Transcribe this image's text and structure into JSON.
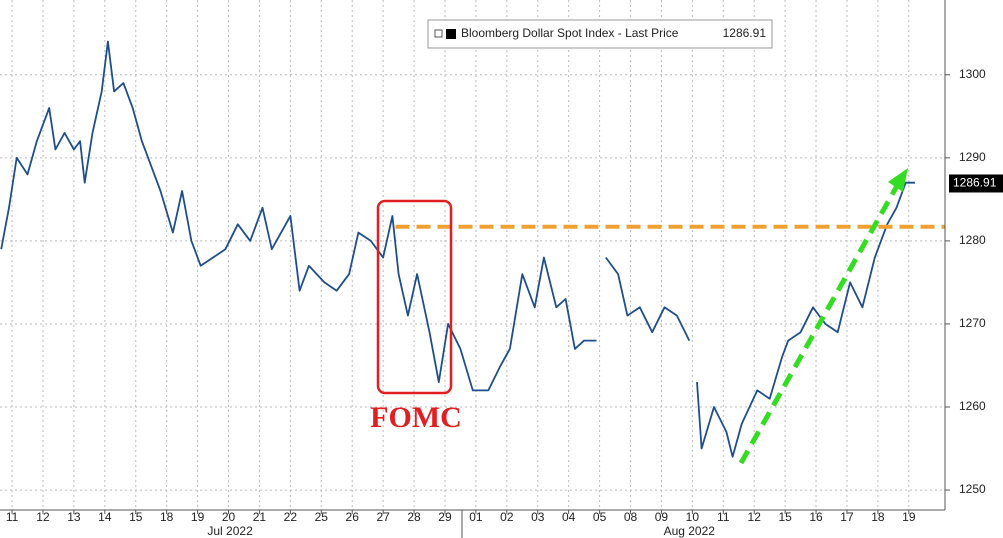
{
  "chart_data": {
    "type": "line",
    "legend_name": "Bloomberg Dollar Spot Index - Last Price",
    "last_price": 1286.91,
    "annotation": "FOMC",
    "hline": 1281.7,
    "xlim": [
      -0.39,
      30.17
    ],
    "ylim": [
      1247.6,
      1309
    ],
    "yticks": [
      1250,
      1260,
      1270,
      1280,
      1290,
      1300
    ],
    "xticks": [
      {
        "value": 0,
        "label": "11"
      },
      {
        "value": 1,
        "label": "12"
      },
      {
        "value": 2,
        "label": "13"
      },
      {
        "value": 3,
        "label": "14"
      },
      {
        "value": 4,
        "label": "15"
      },
      {
        "value": 5,
        "label": "18"
      },
      {
        "value": 6,
        "label": "19"
      },
      {
        "value": 7,
        "label": "20"
      },
      {
        "value": 8,
        "label": "21"
      },
      {
        "value": 9,
        "label": "22"
      },
      {
        "value": 10,
        "label": "25"
      },
      {
        "value": 11,
        "label": "26"
      },
      {
        "value": 12,
        "label": "27"
      },
      {
        "value": 13,
        "label": "28"
      },
      {
        "value": 14,
        "label": "29"
      },
      {
        "value": 15,
        "label": "01"
      },
      {
        "value": 16,
        "label": "02"
      },
      {
        "value": 17,
        "label": "03"
      },
      {
        "value": 18,
        "label": "04"
      },
      {
        "value": 19,
        "label": "05"
      },
      {
        "value": 20,
        "label": "08"
      },
      {
        "value": 21,
        "label": "09"
      },
      {
        "value": 22,
        "label": "10"
      },
      {
        "value": 23,
        "label": "11"
      },
      {
        "value": 24,
        "label": "12"
      },
      {
        "value": 25,
        "label": "15"
      },
      {
        "value": 26,
        "label": "16"
      },
      {
        "value": 27,
        "label": "17"
      },
      {
        "value": 28,
        "label": "18"
      },
      {
        "value": 29,
        "label": "19"
      }
    ],
    "month_labels": [
      {
        "value": 7.05,
        "label": "Jul 2022"
      },
      {
        "value": 21.9,
        "label": "Aug 2022"
      }
    ],
    "grid": true,
    "series": [
      {
        "name": "Bloomberg Dollar Spot Index",
        "color": "#1f4e8c",
        "x": [
          -0.35,
          -0.1,
          0.15,
          0.5,
          0.8,
          1.0,
          1.2,
          1.4,
          1.7,
          2.0,
          2.2,
          2.35,
          2.6,
          2.9,
          3.1,
          3.3,
          3.6,
          3.9,
          4.2,
          4.5,
          4.8,
          5.2,
          5.5,
          5.8,
          6.1,
          6.5,
          6.9,
          7.3,
          7.7,
          8.1,
          8.4,
          8.7,
          9.0,
          9.3,
          9.6,
          10.1,
          10.5,
          10.9,
          11.2,
          11.6,
          12.0,
          12.3,
          12.5,
          12.8,
          13.1,
          13.5,
          13.8,
          14.1,
          14.5,
          14.9,
          15.4,
          15.8,
          16.1,
          16.5,
          16.9,
          17.2,
          17.6,
          17.9,
          18.2,
          18.5,
          18.9,
          null,
          19.2,
          19.6,
          19.9,
          20.3,
          20.7,
          21.1,
          21.5,
          21.9,
          null,
          22.15,
          22.3,
          22.7,
          23.1,
          23.3,
          23.6,
          24.1,
          24.5,
          24.9,
          25.1,
          25.5,
          25.9,
          26.3,
          26.7,
          27.1,
          27.5,
          27.9,
          28.3,
          28.6,
          28.9,
          29.2
        ],
        "values": [
          1279,
          1284,
          1290,
          1288,
          1292,
          1294,
          1296,
          1291,
          1293,
          1291,
          1292,
          1287,
          1293,
          1298,
          1304,
          1298,
          1299,
          1296,
          1292,
          1289,
          1286,
          1281,
          1286,
          1280,
          1277,
          1278,
          1279,
          1282,
          1280,
          1284,
          1279,
          1281,
          1283,
          1274,
          1277,
          1275,
          1274,
          1276,
          1281,
          1280,
          1278,
          1283,
          1276,
          1271,
          1276,
          1269,
          1263,
          1270,
          1267,
          1262,
          1262,
          1265,
          1267,
          1276,
          1272,
          1278,
          1272,
          1273,
          1267,
          1268,
          1268,
          null,
          1278,
          1276,
          1271,
          1272,
          1269,
          1272,
          1271,
          1268,
          null,
          1263,
          1255,
          1260,
          1257,
          1254,
          1258,
          1262,
          1261,
          1266,
          1268,
          1269,
          1272,
          1270,
          1269,
          1275,
          1272,
          1278,
          1282,
          1284,
          1287,
          1287
        ]
      }
    ]
  }
}
